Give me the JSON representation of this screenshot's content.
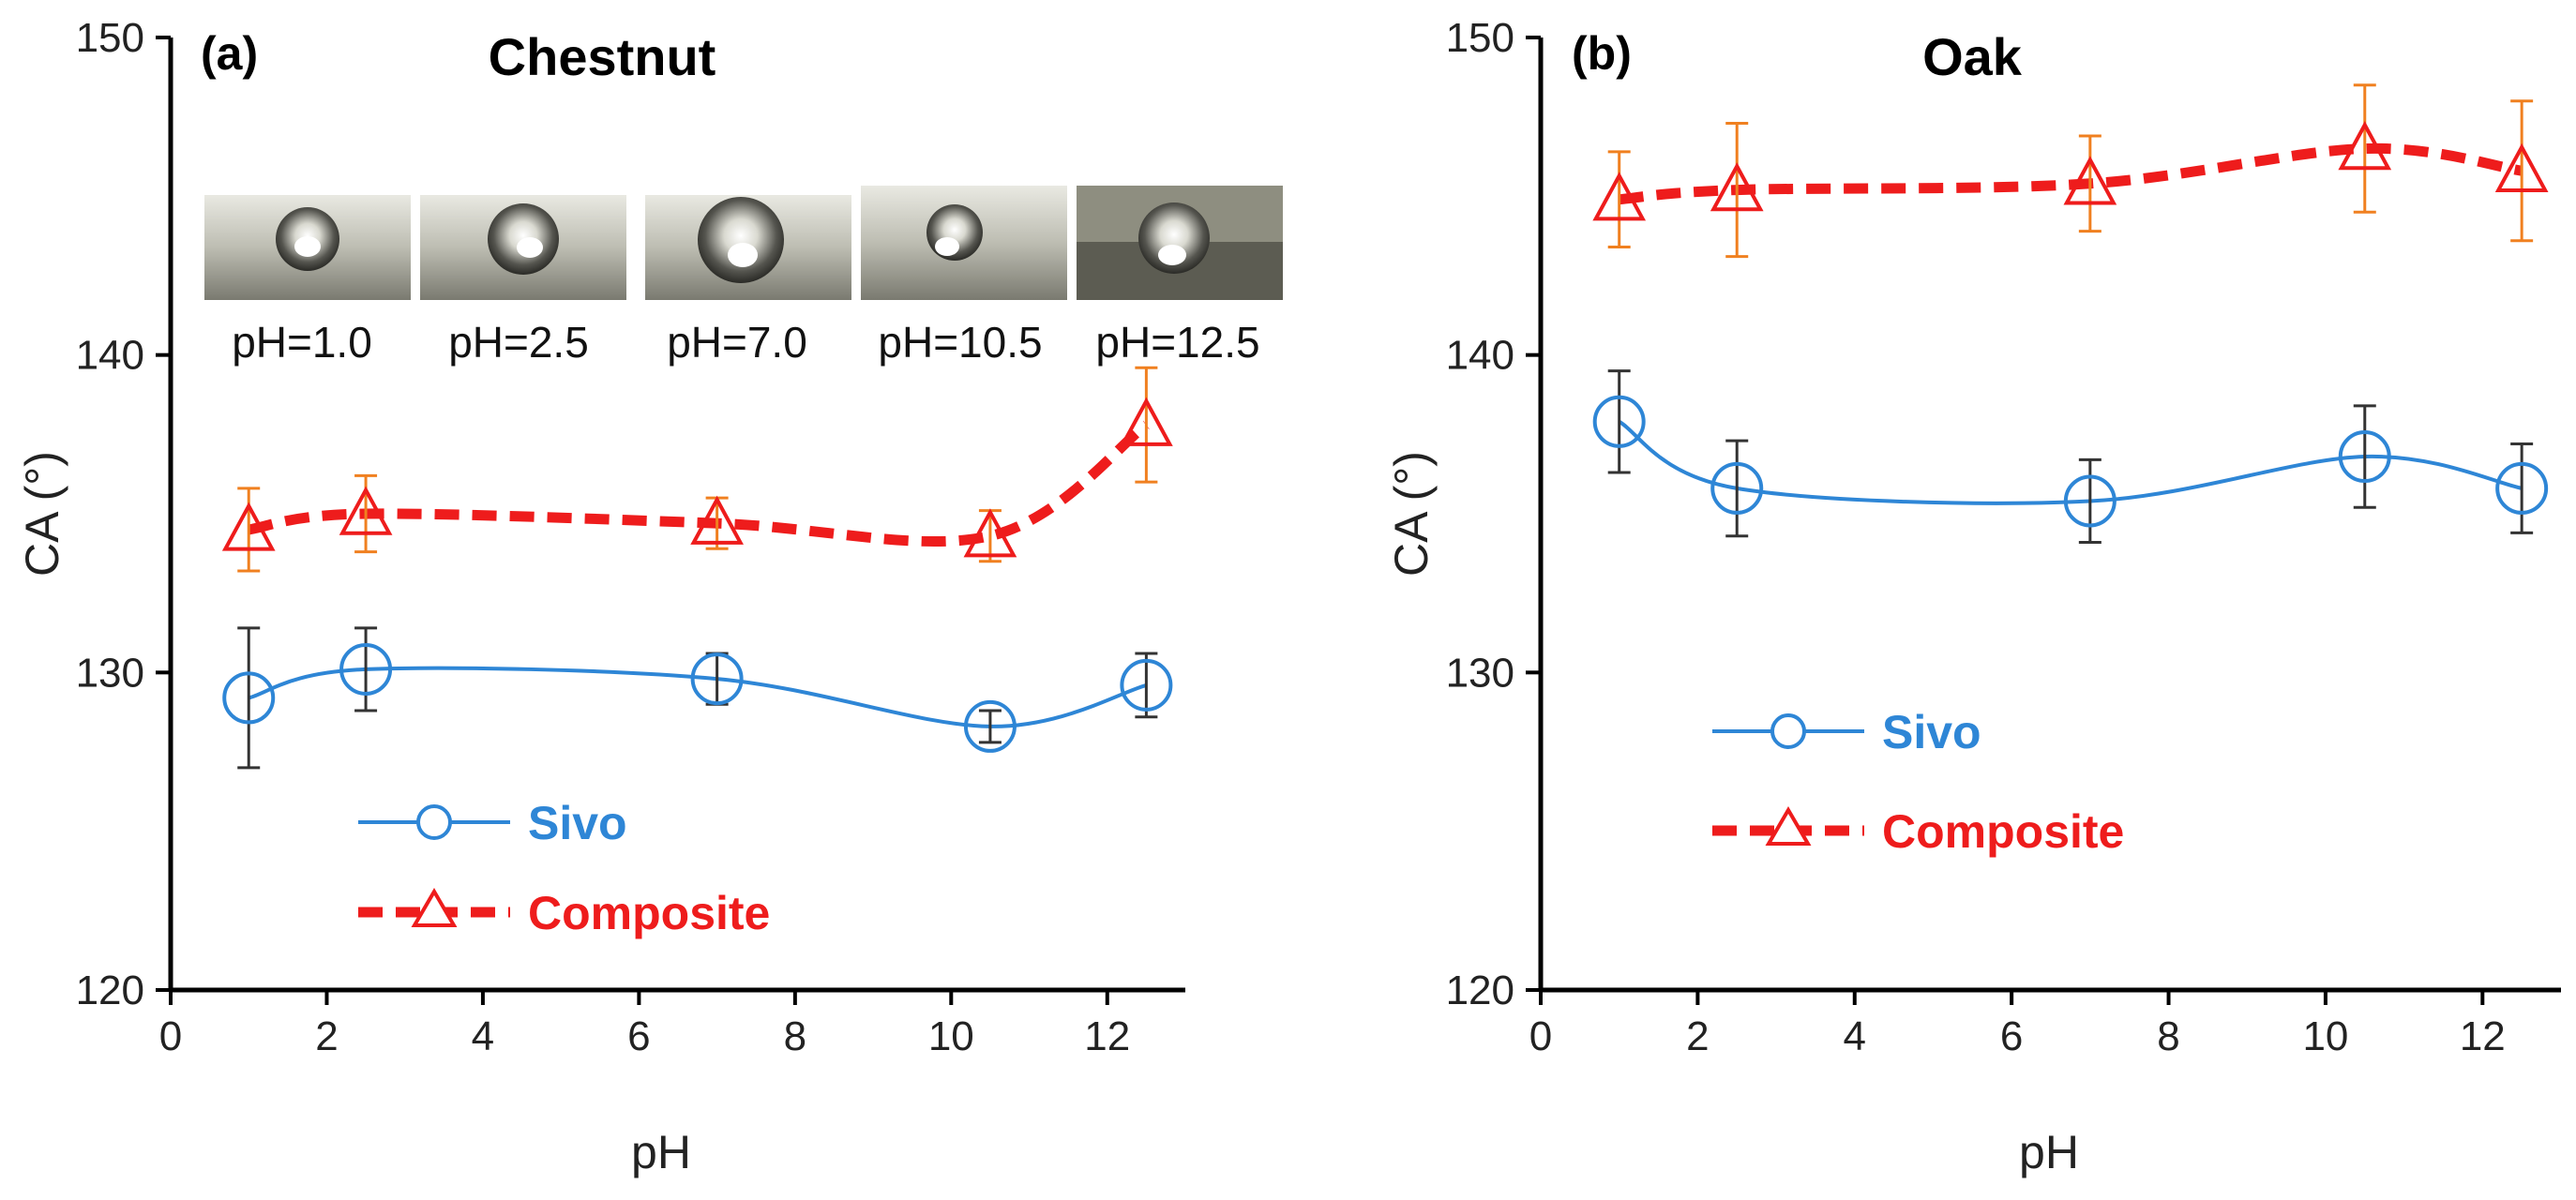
{
  "chart_data": [
    {
      "type": "line",
      "panel_tag": "(a)",
      "title": "Chestnut",
      "xlabel": "pH",
      "ylabel": "CA (°)",
      "xlim": [
        0,
        13
      ],
      "ylim": [
        120,
        150
      ],
      "xticks": [
        "0",
        "2",
        "4",
        "6",
        "8",
        "10",
        "12"
      ],
      "yticks": [
        "120",
        "130",
        "140",
        "150"
      ],
      "x": [
        1.0,
        2.5,
        7.0,
        10.5,
        12.5
      ],
      "series": [
        {
          "name": "Sivo",
          "marker": "circle",
          "line": "solid",
          "color": "#2e86d6",
          "errbar_color": "#333333",
          "values": [
            129.2,
            130.1,
            129.8,
            128.3,
            129.6
          ],
          "errors": [
            2.2,
            1.3,
            0.8,
            0.5,
            1.0
          ]
        },
        {
          "name": "Composite",
          "marker": "triangle",
          "line": "dashed",
          "color": "#ee1c1c",
          "marker_color": "#ee1c1c",
          "errbar_color": "#f08020",
          "values": [
            134.5,
            135.0,
            134.7,
            134.3,
            137.8
          ],
          "errors": [
            1.3,
            1.2,
            0.8,
            0.8,
            1.8
          ]
        }
      ],
      "legend": {
        "placement": "bottom-left",
        "entries": [
          "Sivo",
          "Composite"
        ]
      },
      "inset_labels": [
        "pH=1.0",
        "pH=2.5",
        "pH=7.0",
        "pH=10.5",
        "pH=12.5"
      ]
    },
    {
      "type": "line",
      "panel_tag": "(b)",
      "title": "Oak",
      "xlabel": "pH",
      "ylabel": "CA (°)",
      "xlim": [
        0,
        13
      ],
      "ylim": [
        120,
        150
      ],
      "xticks": [
        "0",
        "2",
        "4",
        "6",
        "8",
        "10",
        "12"
      ],
      "yticks": [
        "120",
        "130",
        "140",
        "150"
      ],
      "x": [
        1.0,
        2.5,
        7.0,
        10.5,
        12.5
      ],
      "series": [
        {
          "name": "Sivo",
          "marker": "circle",
          "line": "solid",
          "color": "#2e86d6",
          "errbar_color": "#333333",
          "values": [
            137.9,
            135.8,
            135.4,
            136.8,
            135.8
          ],
          "errors": [
            1.6,
            1.5,
            1.3,
            1.6,
            1.4
          ]
        },
        {
          "name": "Composite",
          "marker": "triangle",
          "line": "dashed",
          "color": "#ee1c1c",
          "marker_color": "#ee1c1c",
          "errbar_color": "#f08020",
          "values": [
            144.9,
            145.2,
            145.4,
            146.5,
            145.8
          ],
          "errors": [
            1.5,
            2.1,
            1.5,
            2.0,
            2.2
          ]
        }
      ],
      "legend": {
        "placement": "middle-left",
        "entries": [
          "Sivo",
          "Composite"
        ]
      }
    }
  ]
}
